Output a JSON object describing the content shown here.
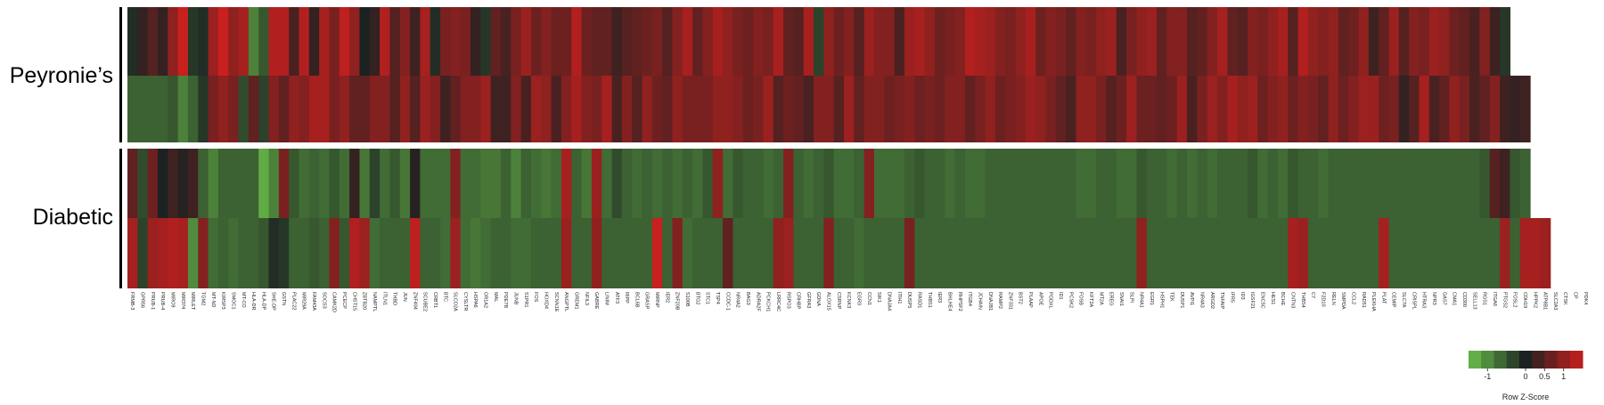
{
  "chart_data": {
    "type": "heatmap",
    "row_groups": [
      {
        "name": "Peyronie’s",
        "rows": 2
      },
      {
        "name": "Diabetic",
        "rows": 2
      }
    ],
    "color_key": {
      "title": "Row Z-Score",
      "tick_labels": [
        "-1",
        "0",
        "0.5",
        "1"
      ],
      "tick_values": [
        -1,
        0,
        0.5,
        1
      ],
      "range": [
        -1.5,
        1.5
      ],
      "low_color": "#6cc04a",
      "mid_color": "#1c2222",
      "high_color": "#c8201e"
    },
    "genes": [
      "FRMB-3",
      "GPR56",
      "PRUB-1",
      "PRUB-4",
      "MIRO9",
      "MIR374",
      "MIRLET",
      "TGM2",
      "MT-ND",
      "KIRSP3",
      "SMOC1",
      "MT-CO",
      "HLA-DR",
      "HLA-DP",
      "SHE-DP",
      "GSTN",
      "PLAC22",
      "MIR29A",
      "FAM43A",
      "SOCS3",
      "CAMK2D",
      "PCECP",
      "CHST15",
      "ZBTB20",
      "NAMPTL",
      "ITLN1",
      "THBD",
      "JUN",
      "ZNF404",
      "SCUBE2",
      "CRBT1",
      "BTC",
      "SLCO2A",
      "CYSLTR",
      "HSPA6",
      "OR1A2",
      "MAL",
      "PDE7B",
      "JUNB",
      "S1PR1",
      "FOS",
      "HOXD4",
      "SCNN1E",
      "ANGPTL",
      "GREM1",
      "NFIL3",
      "GABRE",
      "LINIM",
      "ATF3",
      "RIPP",
      "BCL6B",
      "GRASP",
      "MIRNP",
      "IER2",
      "ZNF20B",
      "S100B",
      "BTG2",
      "STC1",
      "TSP4",
      "CCDC-1",
      "NR4A2",
      "BAG3",
      "ADRA2F",
      "PCKCH1",
      "LRRC4C",
      "RSPO3",
      "CRHBP",
      "GFRA3",
      "GDNA",
      "ALOX15",
      "CSRNP",
      "KCNK3",
      "EGR3",
      "CCN1",
      "SIK1",
      "DNAJA4",
      "ITIH1",
      "DUSP5",
      "RASD1",
      "THBS1",
      "IER3",
      "BHLHE4",
      "RHPSF2",
      "ITGB4",
      "JCHAIN",
      "DNAJB1",
      "RAMP2",
      "ZNF331",
      "BST2",
      "PLAAP",
      "APOE",
      "PODXL",
      "ID1",
      "PCSK2",
      "FOSB",
      "KFT2A",
      "MT2A",
      "EREG",
      "SNAI1",
      "SLPI",
      "NR4A1",
      "EGR1",
      "HSPH1",
      "TEK",
      "DUSP1",
      "AVPI1",
      "NR4A3",
      "ARGD2",
      "TNFAIP",
      "IFR5",
      "ID3",
      "IGSF21",
      "ENC5C",
      "HES1",
      "BCHE",
      "CNTN3",
      "THBS4",
      "C7",
      "F2D10",
      "RELN",
      "SMPDA",
      "CCL2",
      "RAD51",
      "PLEKHA",
      "PLAT",
      "CEMIP",
      "SLC7A",
      "CRISPL",
      "HTRA3",
      "NPR3",
      "GAS7",
      "CMA1",
      "CD300",
      "SELL13",
      "RGS1",
      "ITGA6",
      "PTGS2",
      "FOSL2",
      "CDH19",
      "HPPK2",
      "ATP8B1",
      "SLC2A3",
      "CTSK",
      "CP",
      "PDK4"
    ],
    "values": [
      [
        -0.1,
        0.2,
        0.5,
        0.2,
        1.0,
        1.5,
        -0.2,
        -0.1,
        1.1,
        1.5,
        1.0,
        1.2,
        -0.9,
        -0.5,
        1.3,
        1.3,
        0.4,
        1.3,
        0.2,
        1.2,
        0.8,
        1.4,
        1.0,
        0.0,
        0.2,
        1.3,
        0.5,
        0.9,
        0.3,
        1.2,
        -0.1,
        0.8,
        0.9,
        0.8,
        0.2,
        -0.2,
        0.6,
        0.4,
        0.8,
        1.1,
        0.7,
        0.9,
        0.7,
        0.7,
        1.3,
        0.7,
        0.6,
        0.6,
        0.3,
        0.5,
        0.6,
        0.7,
        0.8,
        0.5,
        0.9,
        1.2,
        0.6,
        0.9,
        1.2,
        1.0,
        0.8,
        0.7,
        0.9,
        0.8,
        1.2,
        0.6,
        0.5,
        1.2,
        -0.3,
        1.0,
        0.7,
        0.9,
        0.5,
        1.1,
        0.9,
        0.9,
        0.4,
        1.1,
        1.2,
        1.0,
        0.7,
        0.8,
        0.9,
        1.3,
        1.2,
        1.1,
        0.9,
        0.8,
        1.0,
        1.2,
        0.7,
        0.9,
        0.8,
        0.6,
        0.9,
        0.8,
        1.0,
        1.1,
        0.4,
        0.8,
        1.0,
        1.1,
        0.6,
        0.9,
        0.9,
        0.5,
        0.6,
        0.9,
        1.2,
        0.6,
        0.5,
        0.9,
        0.8,
        1.0,
        1.2,
        0.5,
        1.3,
        1.0,
        0.9,
        1.0,
        0.6,
        0.7,
        1.0,
        0.3,
        0.6,
        1.1,
        0.5,
        0.9,
        0.8,
        1.1,
        1.0,
        0.7,
        0.6,
        0.4,
        0.9,
        0.3,
        -0.2
      ],
      [
        -0.6,
        -0.6,
        -0.6,
        -0.6,
        -0.5,
        -0.9,
        -0.6,
        -0.2,
        0.8,
        1.0,
        0.8,
        -0.4,
        0.6,
        -0.3,
        0.9,
        0.6,
        1.0,
        0.9,
        1.2,
        1.2,
        0.8,
        1.0,
        0.6,
        0.6,
        0.9,
        0.9,
        0.5,
        1.0,
        0.5,
        1.1,
        0.9,
        0.3,
        0.6,
        0.9,
        0.9,
        1.1,
        0.3,
        0.3,
        0.9,
        0.4,
        1.1,
        1.0,
        0.4,
        0.9,
        1.2,
        0.9,
        0.8,
        1.2,
        0.4,
        0.9,
        0.5,
        1.0,
        0.7,
        0.6,
        1.0,
        0.8,
        0.8,
        0.8,
        1.0,
        1.0,
        0.9,
        0.7,
        0.8,
        1.1,
        0.5,
        0.7,
        0.6,
        0.4,
        0.9,
        0.9,
        0.5,
        1.1,
        0.6,
        0.9,
        0.9,
        0.7,
        0.8,
        0.9,
        0.7,
        0.8,
        0.7,
        0.9,
        0.9,
        0.6,
        0.8,
        1.0,
        0.7,
        0.8,
        0.9,
        1.1,
        1.0,
        0.8,
        0.6,
        0.4,
        1.0,
        1.0,
        0.8,
        0.5,
        0.7,
        1.1,
        0.7,
        0.7,
        0.6,
        0.7,
        1.1,
        0.4,
        0.8,
        1.1,
        0.9,
        1.2,
        1.0,
        1.1,
        0.7,
        0.9,
        1.0,
        0.7,
        0.9,
        0.8,
        0.6,
        1.0,
        0.7,
        0.9,
        1.1,
        1.1,
        0.7,
        0.8,
        0.2,
        0.5,
        1.2,
        0.4,
        0.6,
        1.0,
        0.8,
        0.4,
        0.6,
        0.9,
        0.3,
        0.2,
        0.3
      ],
      [
        0.6,
        -0.4,
        0.7,
        0.0,
        0.3,
        0.1,
        0.3,
        -0.6,
        -0.9,
        -0.6,
        -0.6,
        -0.6,
        -0.6,
        -1.3,
        -0.9,
        0.8,
        -0.5,
        -0.7,
        -0.6,
        -0.7,
        -0.5,
        -0.7,
        0.2,
        -0.8,
        -0.3,
        -0.7,
        -0.5,
        -0.8,
        0.1,
        -0.7,
        -0.7,
        -0.7,
        0.9,
        -0.7,
        -0.7,
        -0.8,
        -0.8,
        -0.6,
        -0.9,
        -0.6,
        -0.7,
        -0.8,
        -0.7,
        1.2,
        -0.6,
        -0.8,
        1.1,
        -0.7,
        -0.4,
        -0.6,
        -0.7,
        -0.6,
        -0.7,
        -0.6,
        -0.7,
        -0.6,
        -0.7,
        -0.5,
        1.0,
        -0.7,
        -0.5,
        -0.6,
        -0.6,
        -0.7,
        -0.6,
        0.9,
        -0.6,
        -0.7,
        -0.6,
        -0.5,
        -0.7,
        -0.7,
        -0.6,
        0.9,
        -0.7,
        -0.7,
        -0.7,
        -0.6,
        -0.5,
        -0.6,
        -0.6,
        -0.7,
        -0.6,
        -0.7,
        -0.7,
        -0.6,
        -0.6,
        -0.6,
        -0.6,
        -0.6,
        -0.6,
        -0.6,
        -0.6,
        -0.6,
        -0.7,
        -0.7,
        -0.6,
        -0.6,
        -0.7,
        -0.7,
        -0.5,
        -0.6,
        -0.6,
        -0.7,
        -0.6,
        -0.7,
        -0.6,
        -0.7,
        -0.6,
        -0.6,
        -0.6,
        -0.5,
        -0.7,
        -0.6,
        -0.7,
        -0.5,
        -0.6,
        -0.6,
        -0.7,
        -0.6,
        -0.6,
        -0.6,
        -0.6,
        -0.6,
        -0.6,
        -0.6,
        -0.6,
        -0.6,
        -0.6,
        -0.6,
        -0.6,
        -0.6,
        -0.6,
        -0.6,
        -0.5,
        0.5,
        0.3,
        -0.5,
        -0.6
      ],
      [
        1.2,
        -0.3,
        1.1,
        1.2,
        1.3,
        1.2,
        -1.0,
        0.9,
        -0.7,
        -0.6,
        -0.7,
        -0.6,
        -0.6,
        -0.5,
        -0.1,
        -0.2,
        -0.6,
        -0.6,
        -0.5,
        -0.6,
        0.9,
        -0.5,
        1.3,
        1.1,
        -0.7,
        -0.6,
        -0.6,
        -0.6,
        1.4,
        -0.6,
        -0.6,
        -0.7,
        1.1,
        -0.7,
        -0.8,
        -0.7,
        -0.6,
        -0.6,
        -0.7,
        -0.7,
        -0.6,
        -0.6,
        -0.6,
        1.1,
        -0.6,
        -0.6,
        1.0,
        -0.6,
        -0.6,
        -0.6,
        -0.6,
        -0.6,
        1.5,
        -0.6,
        0.9,
        -0.7,
        -0.6,
        -0.6,
        -0.6,
        0.6,
        -0.6,
        -0.6,
        -0.6,
        -0.6,
        1.0,
        1.1,
        -0.6,
        -0.6,
        -0.6,
        0.9,
        -0.6,
        -0.6,
        -0.7,
        -0.6,
        -0.6,
        -0.6,
        -0.6,
        0.8,
        -0.6,
        -0.6,
        -0.6,
        -0.6,
        -0.6,
        -0.6,
        -0.6,
        -0.6,
        -0.6,
        -0.6,
        -0.6,
        -0.6,
        -0.6,
        -0.6,
        -0.6,
        -0.6,
        -0.6,
        -0.6,
        -0.6,
        -0.6,
        -0.6,
        -0.6,
        1.0,
        -0.6,
        -0.6,
        -0.6,
        -0.6,
        -0.6,
        -0.6,
        -0.6,
        -0.6,
        -0.6,
        -0.6,
        -0.6,
        -0.6,
        -0.6,
        -0.6,
        1.2,
        1.1,
        -0.6,
        -0.6,
        -0.6,
        -0.6,
        -0.6,
        -0.6,
        -0.6,
        1.2,
        -0.6,
        -0.6,
        -0.6,
        -0.6,
        -0.6,
        -0.6,
        -0.6,
        -0.6,
        -0.6,
        -0.6,
        -0.6,
        1.1,
        -0.6,
        1.2,
        1.2,
        1.1
      ]
    ]
  }
}
